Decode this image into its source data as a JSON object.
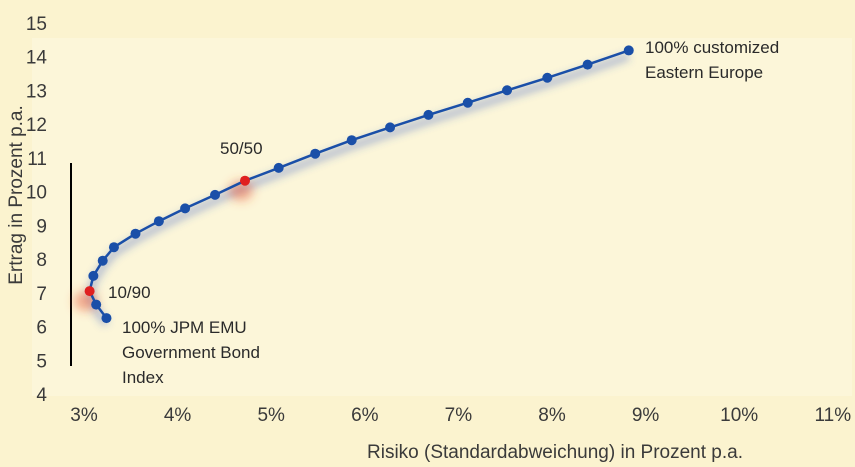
{
  "chart_data": {
    "type": "line",
    "xlabel": "Risiko (Standardabweichung) in Prozent p.a.",
    "ylabel": "Ertrag in Prozent p.a.",
    "xlim": [
      3,
      11
    ],
    "ylim": [
      4,
      15
    ],
    "x_ticks": [
      "3%",
      "4%",
      "5%",
      "6%",
      "7%",
      "8%",
      "9%",
      "10%",
      "11%"
    ],
    "y_ticks": [
      "4",
      "5",
      "6",
      "7",
      "8",
      "9",
      "10",
      "11",
      "12",
      "13",
      "14",
      "15"
    ],
    "grid": false,
    "series": [
      {
        "color": "#1a4fa8",
        "points": [
          {
            "x": 3.24,
            "y": 6.25
          },
          {
            "x": 3.13,
            "y": 6.65
          },
          {
            "x": 3.06,
            "y": 7.05
          },
          {
            "x": 3.1,
            "y": 7.5
          },
          {
            "x": 3.2,
            "y": 7.95
          },
          {
            "x": 3.32,
            "y": 8.35
          },
          {
            "x": 3.55,
            "y": 8.75
          },
          {
            "x": 3.8,
            "y": 9.12
          },
          {
            "x": 4.08,
            "y": 9.5
          },
          {
            "x": 4.4,
            "y": 9.9
          },
          {
            "x": 4.72,
            "y": 10.32
          },
          {
            "x": 5.08,
            "y": 10.7
          },
          {
            "x": 5.47,
            "y": 11.12
          },
          {
            "x": 5.86,
            "y": 11.52
          },
          {
            "x": 6.27,
            "y": 11.9
          },
          {
            "x": 6.68,
            "y": 12.27
          },
          {
            "x": 7.1,
            "y": 12.63
          },
          {
            "x": 7.52,
            "y": 13.0
          },
          {
            "x": 7.95,
            "y": 13.37
          },
          {
            "x": 8.38,
            "y": 13.76
          },
          {
            "x": 8.82,
            "y": 14.18
          }
        ]
      }
    ],
    "highlighted_points": [
      {
        "x": 3.06,
        "y": 7.05,
        "label": "10/90",
        "color": "#e02020"
      },
      {
        "x": 4.72,
        "y": 10.32,
        "label": "50/50",
        "color": "#e02020"
      }
    ],
    "annotations": [
      {
        "lines": [
          "100% customized",
          "Eastern Europe"
        ]
      },
      {
        "lines": [
          "100% JPM EMU",
          "Government Bond",
          "Index"
        ]
      }
    ]
  }
}
